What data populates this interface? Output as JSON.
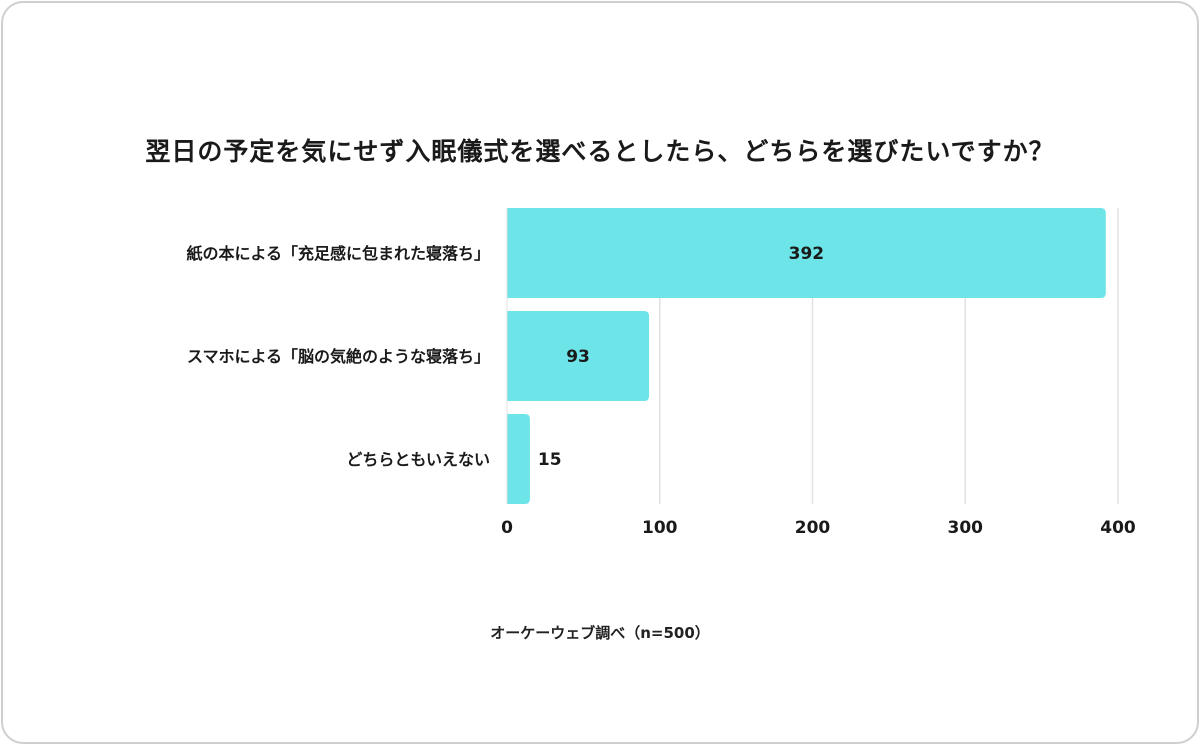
{
  "chart_data": {
    "type": "bar",
    "orientation": "horizontal",
    "title": "翌日の予定を気にせず入眠儀式を選べるとしたら、どちらを選びたいですか？",
    "categories": [
      "紙の本による「充足感に包まれた寝落ち」",
      "スマホによる「脳の気絶のような寝落ち」",
      "どちらともいえない"
    ],
    "values": [
      392,
      93,
      15
    ],
    "xlim": [
      0,
      400
    ],
    "xticks": [
      "0",
      "100",
      "200",
      "300",
      "400"
    ],
    "xtick_values": [
      0,
      100,
      200,
      300,
      400
    ],
    "grid": true,
    "bar_color": "#6ce4e8",
    "source": "オーケーウェブ調べ（n=500）"
  }
}
